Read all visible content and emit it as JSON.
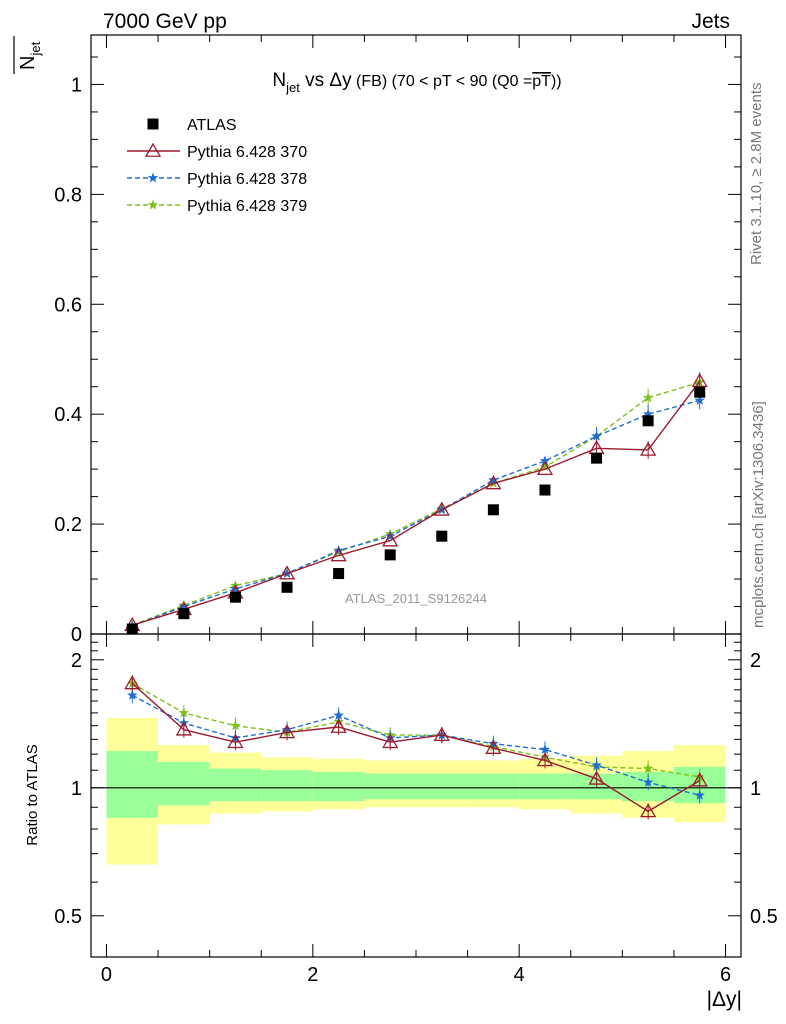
{
  "header": {
    "left": "7000 GeV pp",
    "right": "Jets"
  },
  "title": {
    "main": "N",
    "main_sub": "jet",
    "vs": " vs Δy",
    "detail": " (FB) (70 < pT <  90 (Q0 =",
    "detail_overline": "pT",
    "detail_end": "))"
  },
  "ylabel_top": "N",
  "ylabel_top_sub": "jet",
  "ylabel_bottom": "Ratio to ATLAS",
  "xlabel": "|Δy|",
  "side_labels": {
    "rivet": "Rivet 3.1.10, ≥ 2.8M events",
    "mcplots": "mcplots.cern.ch [arXiv:1306.3436]"
  },
  "watermark": "ATLAS_2011_S9126244",
  "legend": [
    {
      "label": "ATLAS",
      "color": "#000000",
      "marker": "square",
      "dash": "none"
    },
    {
      "label": "Pythia 6.428 370",
      "color": "#9b1c2e",
      "marker": "triangle",
      "dash": "solid"
    },
    {
      "label": "Pythia 6.428 378",
      "color": "#1f6fd1",
      "marker": "star",
      "dash": "dashed"
    },
    {
      "label": "Pythia 6.428 379",
      "color": "#7fbf1f",
      "marker": "star",
      "dash": "dashed"
    }
  ],
  "chart_data": [
    {
      "type": "scatter",
      "panel": "main",
      "x": [
        0.25,
        0.75,
        1.25,
        1.75,
        2.25,
        2.75,
        3.25,
        3.75,
        4.25,
        4.75,
        5.25,
        5.75
      ],
      "xlim": [
        -0.15,
        6.15
      ],
      "ylim": [
        0,
        1.09
      ],
      "yticks": [
        0,
        0.2,
        0.4,
        0.6,
        0.8,
        1
      ],
      "yticklabels": [
        "0",
        "0.2",
        "0.4",
        "0.6",
        "0.8",
        "1"
      ],
      "series": [
        {
          "name": "ATLAS",
          "values": [
            0.009,
            0.037,
            0.067,
            0.085,
            0.11,
            0.144,
            0.178,
            0.226,
            0.262,
            0.32,
            0.388,
            0.44
          ]
        },
        {
          "name": "Pythia 6.428 370",
          "values": [
            0.016,
            0.045,
            0.075,
            0.11,
            0.143,
            0.17,
            0.226,
            0.274,
            0.3,
            0.338,
            0.335,
            0.46
          ]
        },
        {
          "name": "Pythia 6.428 378",
          "values": [
            0.015,
            0.05,
            0.082,
            0.11,
            0.152,
            0.178,
            0.226,
            0.28,
            0.315,
            0.36,
            0.4,
            0.425
          ]
        },
        {
          "name": "Pythia 6.428 379",
          "values": [
            0.016,
            0.052,
            0.088,
            0.11,
            0.15,
            0.182,
            0.228,
            0.274,
            0.304,
            0.36,
            0.43,
            0.458
          ]
        }
      ]
    },
    {
      "type": "line",
      "panel": "ratio",
      "x": [
        0.25,
        0.75,
        1.25,
        1.75,
        2.25,
        2.75,
        3.25,
        3.75,
        4.25,
        4.75,
        5.25,
        5.75
      ],
      "xlim": [
        -0.15,
        6.15
      ],
      "ylim": [
        0.4,
        2.3
      ],
      "log_y": true,
      "xticks": [
        0,
        2,
        4,
        6
      ],
      "xticklabels": [
        "0",
        "2",
        "4",
        "6"
      ],
      "yticks": [
        0.5,
        1,
        2
      ],
      "yticklabels": [
        "0.5",
        "1",
        "2"
      ],
      "series": [
        {
          "name": "Pythia 6.428 370",
          "values": [
            1.76,
            1.37,
            1.28,
            1.35,
            1.39,
            1.28,
            1.33,
            1.24,
            1.16,
            1.05,
            0.88,
            1.04
          ]
        },
        {
          "name": "Pythia 6.428 378",
          "values": [
            1.65,
            1.42,
            1.31,
            1.37,
            1.48,
            1.31,
            1.33,
            1.27,
            1.23,
            1.13,
            1.03,
            0.96
          ]
        },
        {
          "name": "Pythia 6.428 379",
          "values": [
            1.76,
            1.5,
            1.4,
            1.35,
            1.43,
            1.33,
            1.33,
            1.25,
            1.18,
            1.12,
            1.11,
            1.06
          ]
        }
      ],
      "uncertainty_bands": {
        "bin_edges": [
          0,
          0.5,
          1,
          1.5,
          2,
          2.5,
          3,
          3.5,
          4,
          4.5,
          5,
          5.5,
          6
        ],
        "inner_low": [
          0.85,
          0.91,
          0.93,
          0.93,
          0.93,
          0.94,
          0.94,
          0.94,
          0.94,
          0.94,
          0.93,
          0.92
        ],
        "inner_high": [
          1.22,
          1.15,
          1.11,
          1.1,
          1.09,
          1.08,
          1.08,
          1.08,
          1.08,
          1.08,
          1.09,
          1.12
        ],
        "outer_low": [
          0.66,
          0.82,
          0.87,
          0.88,
          0.89,
          0.9,
          0.9,
          0.9,
          0.89,
          0.87,
          0.85,
          0.83
        ],
        "outer_high": [
          1.46,
          1.26,
          1.21,
          1.18,
          1.17,
          1.16,
          1.16,
          1.16,
          1.17,
          1.19,
          1.22,
          1.26
        ],
        "inner_color": "#99ff99",
        "outer_color": "#ffff99"
      }
    }
  ]
}
